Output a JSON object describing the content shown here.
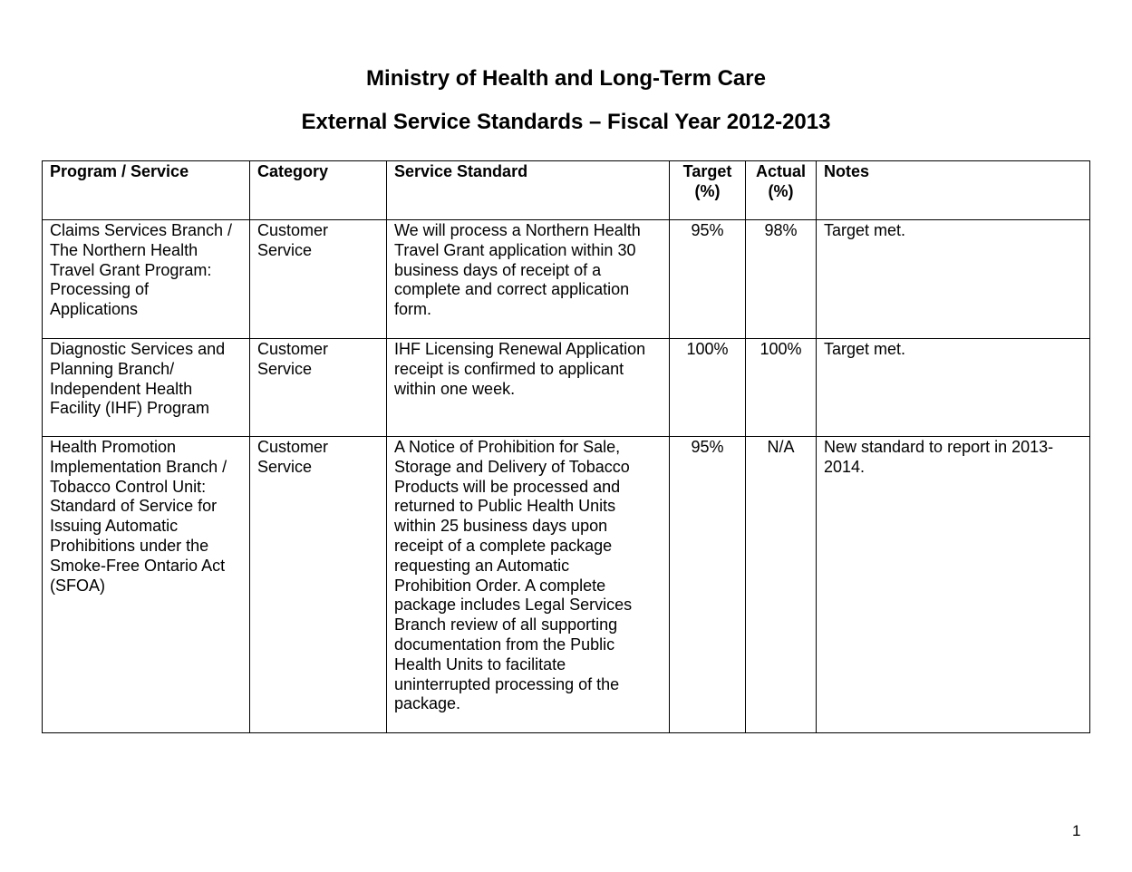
{
  "title": "Ministry of Health and Long-Term Care",
  "subtitle": "External Service Standards – Fiscal Year 2012-2013",
  "table": {
    "headers": [
      "Program / Service",
      "Category",
      "Service Standard",
      "Target\n(%)",
      "Actual\n(%)",
      "Notes"
    ],
    "rows": [
      [
        "Claims Services Branch /\nThe Northern Health\nTravel Grant Program:\nProcessing of\nApplications",
        "Customer\nService",
        "We will process a Northern Health\nTravel Grant application within 30\nbusiness days of receipt of a\ncomplete and correct application\nform.",
        "95%",
        "98%",
        "Target met."
      ],
      [
        "Diagnostic Services and\nPlanning Branch/\nIndependent Health\nFacility (IHF) Program",
        "Customer\nService",
        "IHF Licensing Renewal Application\nreceipt is confirmed to applicant\nwithin one week.",
        "100%",
        "100%",
        "Target met."
      ],
      [
        "Health Promotion\nImplementation Branch /\nTobacco Control Unit:\nStandard of Service for\nIssuing Automatic\nProhibitions under the\nSmoke-Free Ontario Act\n(SFOA)",
        "Customer\nService",
        "A Notice of Prohibition for Sale,\nStorage and Delivery of Tobacco\nProducts will be processed and\nreturned to Public Health Units\nwithin 25 business days upon\nreceipt of a complete package\nrequesting an Automatic\nProhibition Order.  A complete\npackage includes Legal Services\nBranch review of all supporting\ndocumentation from the Public\nHealth Units to facilitate\nuninterrupted processing of the\npackage.",
        "95%",
        "N/A",
        "New standard to report in 2013-\n2014."
      ]
    ]
  },
  "page_number": "1"
}
